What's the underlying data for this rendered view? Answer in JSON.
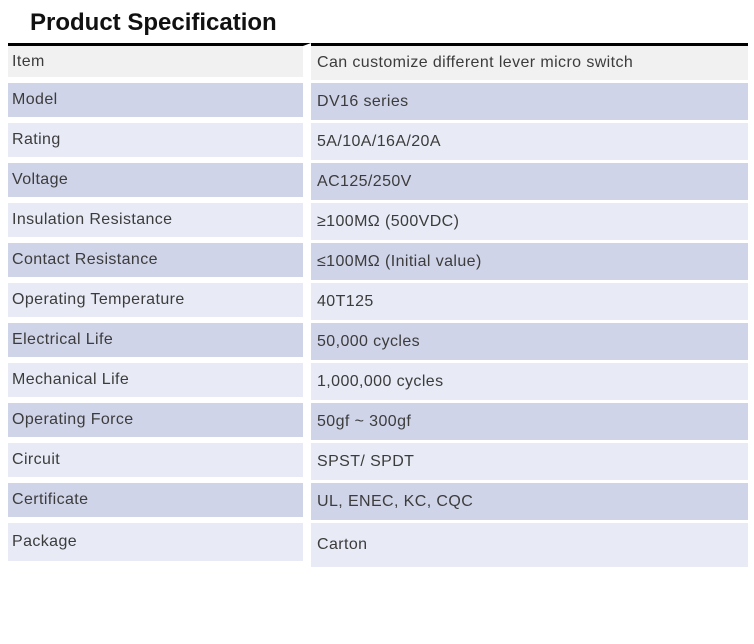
{
  "page": {
    "title": "Product Specification"
  },
  "colors": {
    "header_row_bg": "#f1f1f2",
    "row_medium_lavender": "#cfd4e8",
    "row_pale_lavender": "#e8ebf6",
    "top_rule": "#000000",
    "cell_gap": "#ffffff",
    "text": "#3c3c3c"
  },
  "table": {
    "rows": [
      {
        "label": "Item",
        "value": "Can customize different lever micro switch"
      },
      {
        "label": "Model",
        "value": "DV16 series"
      },
      {
        "label": "Rating",
        "value": "5A/10A/16A/20A"
      },
      {
        "label": "Voltage",
        "value": "AC125/250V"
      },
      {
        "label": "Insulation Resistance",
        "value": "≥100MΩ (500VDC)"
      },
      {
        "label": "Contact Resistance",
        "value": "≤100MΩ (Initial value)"
      },
      {
        "label": "Operating Temperature",
        "value": "40T125"
      },
      {
        "label": "Electrical Life",
        "value": "50,000 cycles"
      },
      {
        "label": "Mechanical Life",
        "value": "1,000,000 cycles"
      },
      {
        "label": "Operating Force",
        "value": "50gf ~ 300gf"
      },
      {
        "label": "Circuit",
        "value": "SPST/ SPDT"
      },
      {
        "label": "Certificate",
        "value": "UL, ENEC, KC, CQC"
      },
      {
        "label": "Package",
        "value": "Carton"
      }
    ]
  }
}
